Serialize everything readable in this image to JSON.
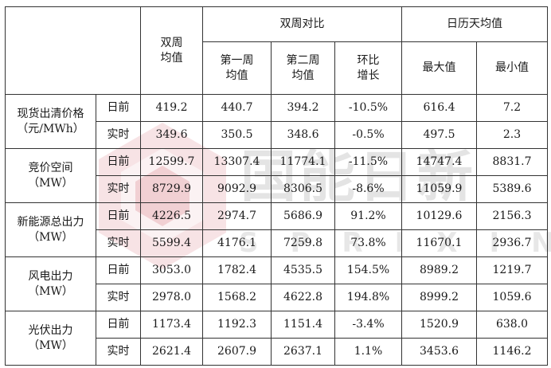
{
  "watermark": {
    "text": "国能日新",
    "subtext": "SPRIXIN",
    "colors": {
      "logo": "#d9808a",
      "text": "#aaaaaa"
    }
  },
  "header": {
    "double_week_line1": "双周",
    "double_week_line2": "均值",
    "compare_group": "双周对比",
    "calendar_group": "日历天均值",
    "week1_line1": "第一周",
    "week1_line2": "均值",
    "week2_line1": "第二周",
    "week2_line2": "均值",
    "ratio_line1": "环比",
    "ratio_line2": "增长",
    "max": "最大值",
    "min": "最小值"
  },
  "groups": [
    {
      "name_line1": "现货出清价格",
      "name_line2": "（元/MWh）",
      "rows": [
        {
          "type": "日前",
          "avg": "419.2",
          "w1": "440.7",
          "w2": "394.2",
          "ratio": "-10.5%",
          "max": "616.4",
          "min": "7.2"
        },
        {
          "type": "实时",
          "avg": "349.6",
          "w1": "350.5",
          "w2": "348.6",
          "ratio": "-0.5%",
          "max": "497.5",
          "min": "2.3"
        }
      ]
    },
    {
      "name_line1": "竞价空间",
      "name_line2": "（MW）",
      "rows": [
        {
          "type": "日前",
          "avg": "12599.7",
          "w1": "13307.4",
          "w2": "11774.1",
          "ratio": "-11.5%",
          "max": "14747.4",
          "min": "8831.7"
        },
        {
          "type": "实时",
          "avg": "8729.9",
          "w1": "9092.9",
          "w2": "8306.5",
          "ratio": "-8.6%",
          "max": "11059.9",
          "min": "5389.6"
        }
      ]
    },
    {
      "name_line1": "新能源总出力",
      "name_line2": "（MW）",
      "rows": [
        {
          "type": "日前",
          "avg": "4226.5",
          "w1": "2974.7",
          "w2": "5686.9",
          "ratio": "91.2%",
          "max": "10129.6",
          "min": "2156.3"
        },
        {
          "type": "实时",
          "avg": "5599.4",
          "w1": "4176.1",
          "w2": "7259.8",
          "ratio": "73.8%",
          "max": "11670.1",
          "min": "2936.7"
        }
      ]
    },
    {
      "name_line1": "风电出力",
      "name_line2": "（MW）",
      "rows": [
        {
          "type": "日前",
          "avg": "3053.0",
          "w1": "1782.4",
          "w2": "4535.5",
          "ratio": "154.5%",
          "max": "8989.2",
          "min": "1219.7"
        },
        {
          "type": "实时",
          "avg": "2978.0",
          "w1": "1568.2",
          "w2": "4622.8",
          "ratio": "194.8%",
          "max": "8999.2",
          "min": "1059.6"
        }
      ]
    },
    {
      "name_line1": "光伏出力",
      "name_line2": "（MW）",
      "rows": [
        {
          "type": "日前",
          "avg": "1173.4",
          "w1": "1192.3",
          "w2": "1151.4",
          "ratio": "-3.4%",
          "max": "1520.9",
          "min": "638.0"
        },
        {
          "type": "实时",
          "avg": "2621.4",
          "w1": "2607.9",
          "w2": "2637.1",
          "ratio": "1.1%",
          "max": "3453.6",
          "min": "1146.2"
        }
      ]
    }
  ]
}
